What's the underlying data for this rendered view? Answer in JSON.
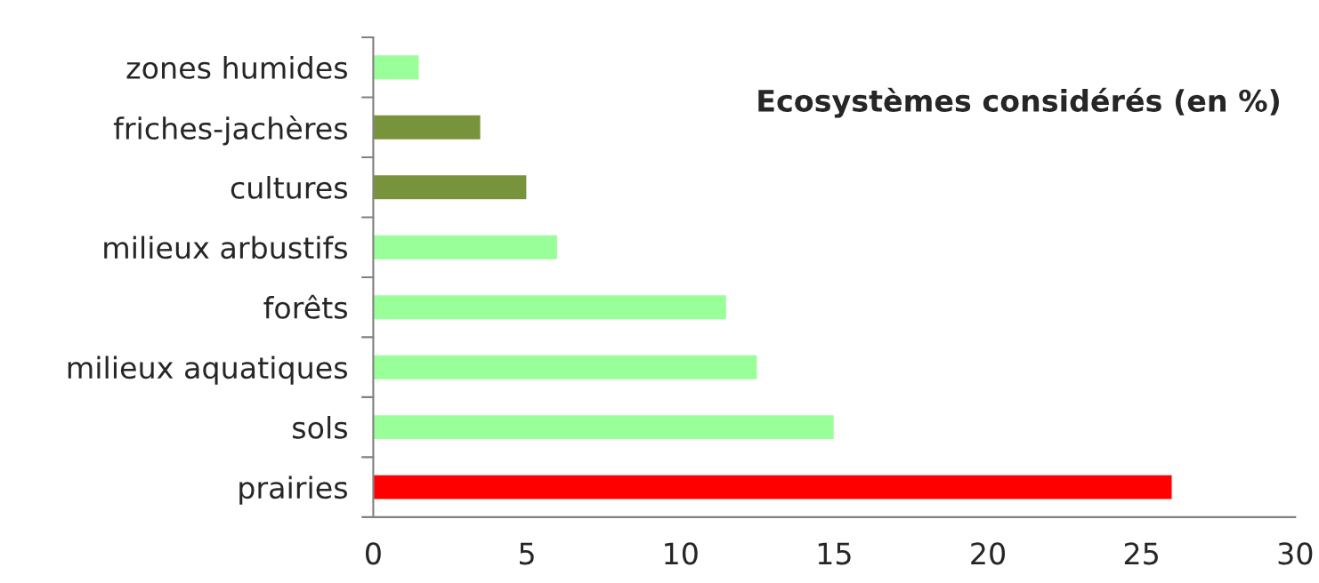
{
  "chart_data": {
    "type": "bar",
    "orientation": "horizontal",
    "title": "Ecosystèmes considérés (en %)",
    "categories": [
      "zones humides",
      "friches-jachères",
      "cultures",
      "milieux arbustifs",
      "forêts",
      "milieux aquatiques",
      "sols",
      "prairies"
    ],
    "values": [
      1.5,
      3.5,
      5,
      6,
      11.5,
      12.5,
      15,
      26
    ],
    "colors": [
      "#99ff99",
      "#77933c",
      "#77933c",
      "#99ff99",
      "#99ff99",
      "#99ff99",
      "#99ff99",
      "#ff0000"
    ],
    "xlim": [
      0,
      30
    ],
    "xticks": [
      0,
      5,
      10,
      15,
      20,
      25,
      30
    ],
    "grid": false,
    "legend": false
  }
}
